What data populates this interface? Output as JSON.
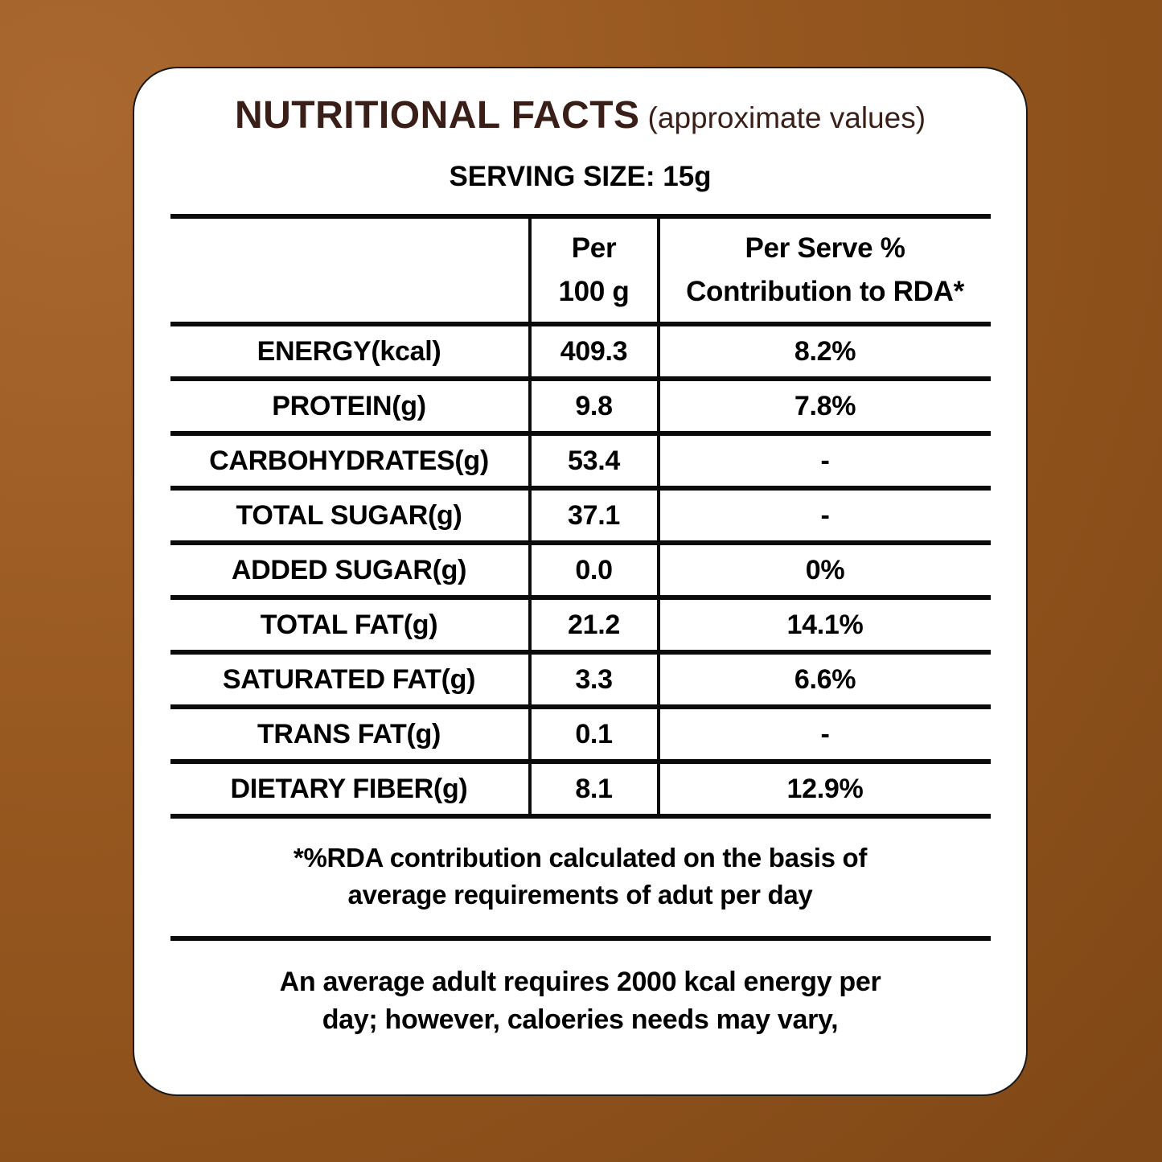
{
  "colors": {
    "background_light": "#a9682f",
    "background_dark": "#7a4414",
    "card_background": "#ffffff",
    "title_text": "#3a1f19",
    "body_text": "#000000",
    "line": "#0b0b0b"
  },
  "header": {
    "title": "NUTRITIONAL FACTS",
    "title_note": "(approximate values)",
    "serving_size": "SERVING SIZE: 15g"
  },
  "table": {
    "columns": {
      "per100_line1": "Per",
      "per100_line2": "100 g",
      "rda_line1": "Per Serve %",
      "rda_line2": "Contribution to RDA*"
    },
    "rows": [
      {
        "label": "ENERGY(kcal)",
        "per_100g": "409.3",
        "rda_percent": "8.2%"
      },
      {
        "label": "PROTEIN(g)",
        "per_100g": "9.8",
        "rda_percent": "7.8%"
      },
      {
        "label": "CARBOHYDRATES(g)",
        "per_100g": "53.4",
        "rda_percent": "-"
      },
      {
        "label": "TOTAL SUGAR(g)",
        "per_100g": "37.1",
        "rda_percent": "-"
      },
      {
        "label": "ADDED SUGAR(g)",
        "per_100g": "0.0",
        "rda_percent": "0%"
      },
      {
        "label": "TOTAL FAT(g)",
        "per_100g": "21.2",
        "rda_percent": "14.1%"
      },
      {
        "label": "SATURATED FAT(g)",
        "per_100g": "3.3",
        "rda_percent": "6.6%"
      },
      {
        "label": "TRANS FAT(g)",
        "per_100g": "0.1",
        "rda_percent": "-"
      },
      {
        "label": "DIETARY FIBER(g)",
        "per_100g": "8.1",
        "rda_percent": "12.9%"
      }
    ]
  },
  "footnotes": {
    "rda_note_line1": "*%RDA contribution calculated on the basis of",
    "rda_note_line2": "average requirements of adut per day",
    "energy_note_line1": "An average adult requires 2000 kcal energy per",
    "energy_note_line2": "day; however, caloeries needs may vary,"
  }
}
